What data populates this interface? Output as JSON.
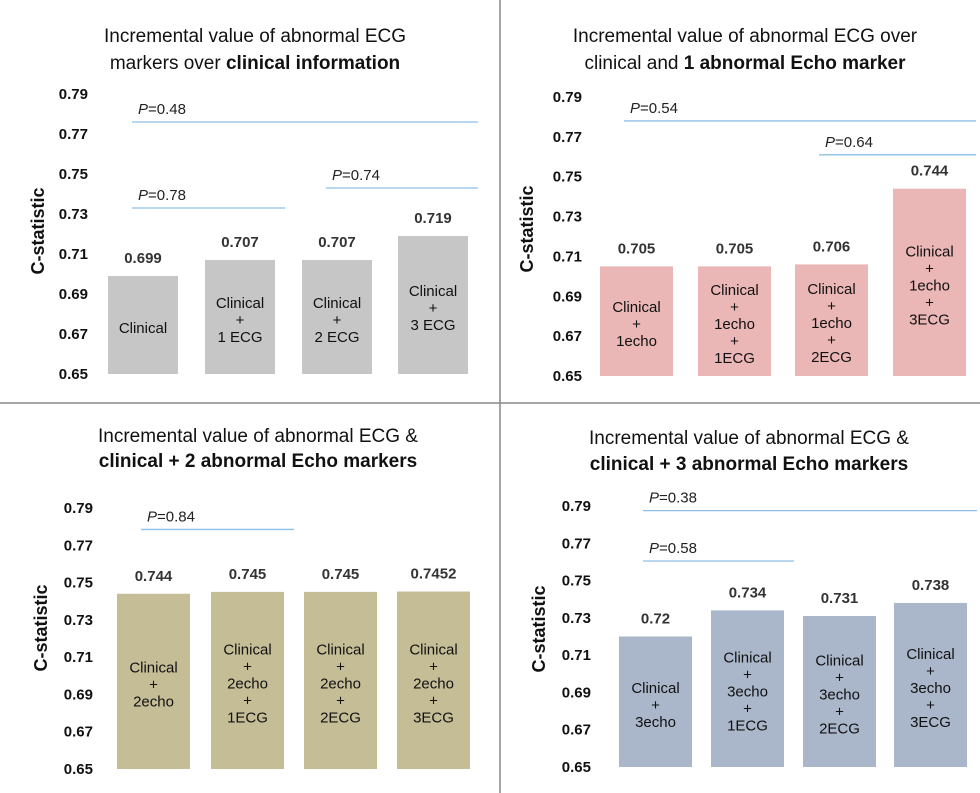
{
  "colors": {
    "panel1_bar": "#c6c6c6",
    "panel2_bar": "#ebb6b6",
    "panel3_bar": "#c5bd96",
    "panel4_bar": "#aab6ca",
    "pvalue_line": "#8fc0e6",
    "divider": "#888888"
  },
  "chart_data": [
    {
      "type": "bar",
      "title_lines": [
        [
          {
            "text": "Incremental value of abnormal ECG",
            "bold": false
          }
        ],
        [
          {
            "text": "markers over ",
            "bold": false
          },
          {
            "text": "clinical information",
            "bold": true
          }
        ]
      ],
      "ylabel": "C-statistic",
      "ylim": [
        0.65,
        0.79
      ],
      "yticks": [
        "0.79",
        "0.77",
        "0.75",
        "0.73",
        "0.71",
        "0.69",
        "0.67",
        "0.65"
      ],
      "categories": [
        [
          "Clinical"
        ],
        [
          "Clinical",
          "+",
          "1 ECG"
        ],
        [
          "Clinical",
          "+",
          "2 ECG"
        ],
        [
          "Clinical",
          "+",
          "3 ECG"
        ]
      ],
      "values": [
        0.699,
        0.707,
        0.707,
        0.719
      ],
      "value_labels": [
        "0.699",
        "0.707",
        "0.707",
        "0.719"
      ],
      "pvalues": [
        {
          "text": "=0.48",
          "from": 0,
          "to": 3,
          "level": 0.776
        },
        {
          "text": "=0.78",
          "from": 0,
          "to": 1,
          "level": 0.733
        },
        {
          "text": "=0.74",
          "from": 2,
          "to": 3,
          "level": 0.743
        }
      ]
    },
    {
      "type": "bar",
      "title_lines": [
        [
          {
            "text": "Incremental value of abnormal ECG over",
            "bold": false
          }
        ],
        [
          {
            "text": "clinical and ",
            "bold": false
          },
          {
            "text": "1 abnormal Echo marker",
            "bold": true
          }
        ]
      ],
      "ylabel": "C-statistic",
      "ylim": [
        0.65,
        0.79
      ],
      "yticks": [
        "0.79",
        "0.77",
        "0.75",
        "0.73",
        "0.71",
        "0.69",
        "0.67",
        "0.65"
      ],
      "categories": [
        [
          "Clinical",
          "+",
          "1echo"
        ],
        [
          "Clinical",
          "+",
          "1echo",
          "+",
          "1ECG"
        ],
        [
          "Clinical",
          "+",
          "1echo",
          "+",
          "2ECG"
        ],
        [
          "Clinical",
          "+",
          "1echo",
          "+",
          "3ECG"
        ]
      ],
      "values": [
        0.705,
        0.705,
        0.706,
        0.744
      ],
      "value_labels": [
        "0.705",
        "0.705",
        "0.706",
        "0.744"
      ],
      "pvalues": [
        {
          "text": "=0.54",
          "from": 0,
          "to": 3,
          "level": 0.778
        },
        {
          "text": "=0.64",
          "from": 2,
          "to": 3,
          "level": 0.761
        }
      ]
    },
    {
      "type": "bar",
      "title_lines": [
        [
          {
            "text": "Incremental value of abnormal ECG &",
            "bold": false
          }
        ],
        [
          {
            "text": "clinical + 2 abnormal Echo markers",
            "bold": true
          }
        ]
      ],
      "ylabel": "C-statistic",
      "ylim": [
        0.65,
        0.79
      ],
      "yticks": [
        "0.79",
        "0.77",
        "0.75",
        "0.73",
        "0.71",
        "0.69",
        "0.67",
        "0.65"
      ],
      "categories": [
        [
          "Clinical",
          "+",
          "2echo"
        ],
        [
          "Clinical",
          "+",
          "2echo",
          "+",
          "1ECG"
        ],
        [
          "Clinical",
          "+",
          "2echo",
          "+",
          "2ECG"
        ],
        [
          "Clinical",
          "+",
          "2echo",
          "+",
          "3ECG"
        ]
      ],
      "values": [
        0.744,
        0.745,
        0.745,
        0.7452
      ],
      "value_labels": [
        "0.744",
        "0.745",
        "0.745",
        "0.7452"
      ],
      "pvalues": [
        {
          "text": "=0.84",
          "from": 0,
          "to": 1,
          "level": 0.7785
        }
      ]
    },
    {
      "type": "bar",
      "title_lines": [
        [
          {
            "text": "Incremental value of abnormal ECG &",
            "bold": false
          }
        ],
        [
          {
            "text": "clinical + 3 abnormal Echo markers",
            "bold": true
          }
        ]
      ],
      "ylabel": "C-statistic",
      "ylim": [
        0.65,
        0.79
      ],
      "yticks": [
        "0.79",
        "0.77",
        "0.75",
        "0.73",
        "0.71",
        "0.69",
        "0.67",
        "0.65"
      ],
      "categories": [
        [
          "Clinical",
          "+",
          "3echo"
        ],
        [
          "Clinical",
          "+",
          "3echo",
          "+",
          "1ECG"
        ],
        [
          "Clinical",
          "+",
          "3echo",
          "+",
          "2ECG"
        ],
        [
          "Clinical",
          "+",
          "3echo",
          "+",
          "3ECG"
        ]
      ],
      "values": [
        0.72,
        0.734,
        0.731,
        0.738
      ],
      "value_labels": [
        "0.72",
        "0.734",
        "0.731",
        "0.738"
      ],
      "pvalues": [
        {
          "text": "=0.38",
          "from": 0,
          "to": 3,
          "level": 0.7875
        },
        {
          "text": "=0.58",
          "from": 0,
          "to": 1,
          "level": 0.7605
        }
      ]
    }
  ]
}
